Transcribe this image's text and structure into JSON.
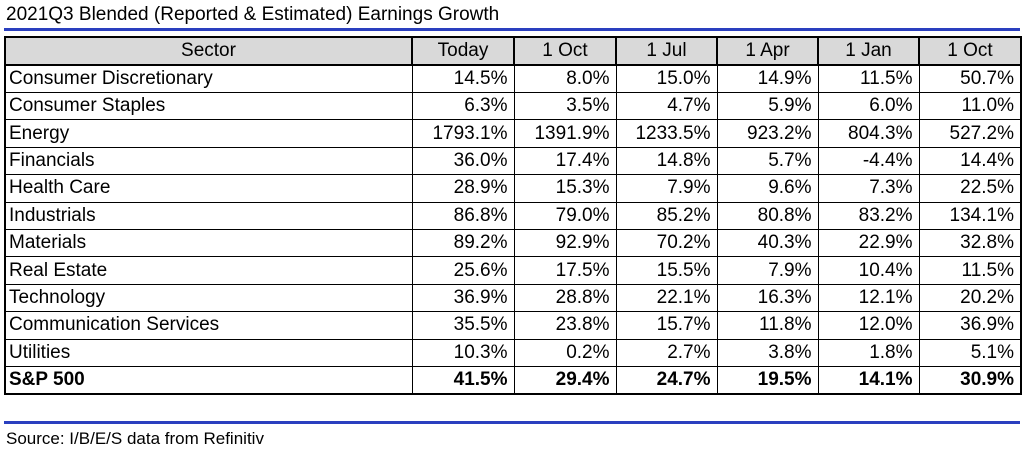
{
  "title": "2021Q3 Blended (Reported & Estimated) Earnings Growth",
  "source": "Source: I/B/E/S data from Refinitiv",
  "chart_data": {
    "type": "table",
    "title": "2021Q3 Blended (Reported & Estimated) Earnings Growth",
    "columns": [
      "Sector",
      "Today",
      "1 Oct",
      "1 Jul",
      "1 Apr",
      "1 Jan",
      "1 Oct"
    ],
    "rows": [
      [
        "Consumer Discretionary",
        "14.5%",
        "8.0%",
        "15.0%",
        "14.9%",
        "11.5%",
        "50.7%"
      ],
      [
        "Consumer Staples",
        "6.3%",
        "3.5%",
        "4.7%",
        "5.9%",
        "6.0%",
        "11.0%"
      ],
      [
        "Energy",
        "1793.1%",
        "1391.9%",
        "1233.5%",
        "923.2%",
        "804.3%",
        "527.2%"
      ],
      [
        "Financials",
        "36.0%",
        "17.4%",
        "14.8%",
        "5.7%",
        "-4.4%",
        "14.4%"
      ],
      [
        "Health Care",
        "28.9%",
        "15.3%",
        "7.9%",
        "9.6%",
        "7.3%",
        "22.5%"
      ],
      [
        "Industrials",
        "86.8%",
        "79.0%",
        "85.2%",
        "80.8%",
        "83.2%",
        "134.1%"
      ],
      [
        "Materials",
        "89.2%",
        "92.9%",
        "70.2%",
        "40.3%",
        "22.9%",
        "32.8%"
      ],
      [
        "Real Estate",
        "25.6%",
        "17.5%",
        "15.5%",
        "7.9%",
        "10.4%",
        "11.5%"
      ],
      [
        "Technology",
        "36.9%",
        "28.8%",
        "22.1%",
        "16.3%",
        "12.1%",
        "20.2%"
      ],
      [
        "Communication Services",
        "35.5%",
        "23.8%",
        "15.7%",
        "11.8%",
        "12.0%",
        "36.9%"
      ],
      [
        "Utilities",
        "10.3%",
        "0.2%",
        "2.7%",
        "3.8%",
        "1.8%",
        "5.1%"
      ]
    ],
    "total_row": [
      "S&P 500",
      "41.5%",
      "29.4%",
      "24.7%",
      "19.5%",
      "14.1%",
      "30.9%"
    ],
    "colors": {
      "rule": "#2a3fbf",
      "header_bg": "#d9d9d9"
    }
  }
}
